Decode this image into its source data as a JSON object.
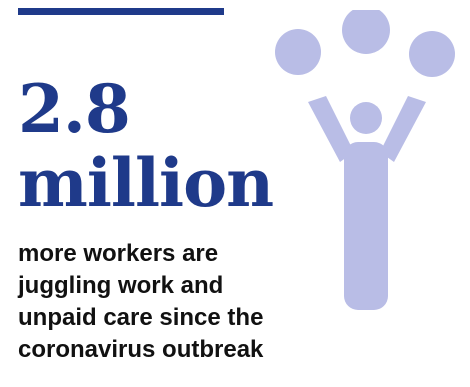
{
  "stat": {
    "number": "2.8",
    "unit": "million"
  },
  "caption": {
    "lines": [
      "more workers are",
      "juggling work and",
      "unpaid care since the",
      "coronavirus outbreak"
    ]
  },
  "illustration": {
    "icon": "juggling-person-icon",
    "color": "#b9bde6"
  },
  "colors": {
    "accent": "#1f3a8a",
    "text": "#111111"
  }
}
